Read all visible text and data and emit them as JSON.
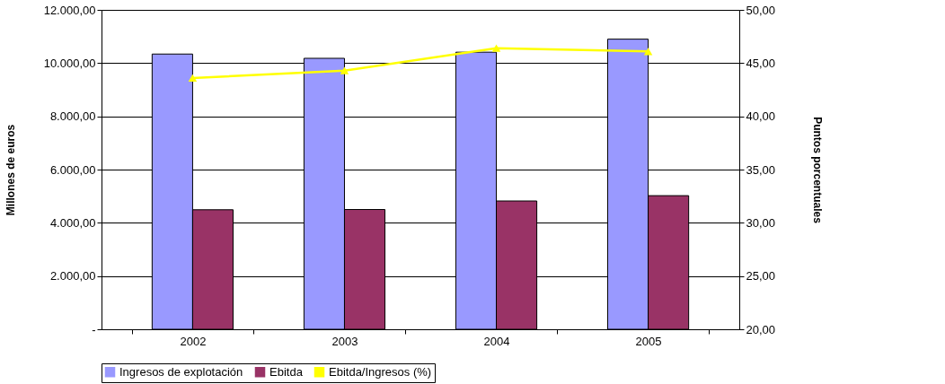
{
  "chart_data": {
    "type": "bar",
    "categories": [
      "2002",
      "2003",
      "2004",
      "2005"
    ],
    "ylabel": "Millones de euros",
    "y2label": "Puntos porcentuales",
    "series": [
      {
        "name": "Ingresos de explotación",
        "color": "#9999ff",
        "values": [
          10340,
          10180,
          10410,
          10900
        ]
      },
      {
        "name": "Ebitda",
        "color": "#993366",
        "values": [
          4490,
          4500,
          4820,
          5020
        ]
      },
      {
        "name": "Ebitda/Ingresos (%)",
        "color": "#ffff00",
        "type": "line",
        "axis": "y2",
        "marker": "triangle",
        "values": [
          43.6,
          44.3,
          46.4,
          46.1
        ]
      }
    ],
    "ylim": [
      0,
      12000
    ],
    "yticks": [
      {
        "value": 0,
        "label": "-"
      },
      {
        "value": 2000,
        "label": "2.000,00"
      },
      {
        "value": 4000,
        "label": "4.000,00"
      },
      {
        "value": 6000,
        "label": "6.000,00"
      },
      {
        "value": 8000,
        "label": "8.000,00"
      },
      {
        "value": 10000,
        "label": "10.000,00"
      },
      {
        "value": 12000,
        "label": "12.000,00"
      }
    ],
    "y2lim": [
      20,
      50
    ],
    "y2ticks": [
      {
        "value": 20,
        "label": "20,00"
      },
      {
        "value": 25,
        "label": "25,00"
      },
      {
        "value": 30,
        "label": "30,00"
      },
      {
        "value": 35,
        "label": "35,00"
      },
      {
        "value": 40,
        "label": "40,00"
      },
      {
        "value": 45,
        "label": "45,00"
      },
      {
        "value": 50,
        "label": "50,00"
      }
    ],
    "grid": "y",
    "legend": "bottom"
  }
}
